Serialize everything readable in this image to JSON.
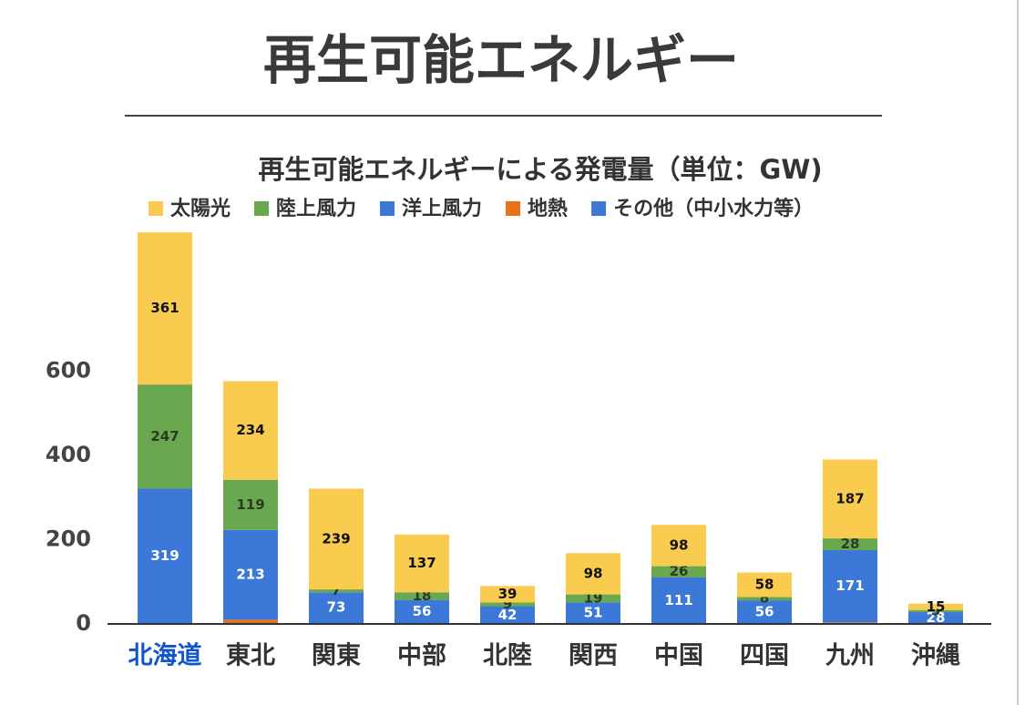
{
  "header": {
    "title": "再生可能エネルギー"
  },
  "chart_data": {
    "type": "bar",
    "stacked": true,
    "title": "再生可能エネルギーによる発電量（単位：GW)",
    "categories": [
      "北海道",
      "東北",
      "関東",
      "中部",
      "北陸",
      "関西",
      "中国",
      "四国",
      "九州",
      "沖縄"
    ],
    "highlight": {
      "index": 0,
      "color": "#1155cc"
    },
    "series": [
      {
        "name": "太陽光",
        "color": "#f9cb4f",
        "label_color": "#111",
        "labels": true,
        "values": [
          361,
          234,
          239,
          137,
          39,
          98,
          98,
          58,
          187,
          15
        ]
      },
      {
        "name": "陸上風力",
        "color": "#6aa84f",
        "label_color": "#2b3b22",
        "labels": true,
        "values": [
          247,
          119,
          7,
          18,
          9,
          19,
          26,
          8,
          28,
          5
        ]
      },
      {
        "name": "洋上風力",
        "color": "#3c78d8",
        "label_color": "#ffffff",
        "labels": true,
        "values": [
          319,
          213,
          73,
          56,
          42,
          51,
          111,
          56,
          171,
          28
        ]
      },
      {
        "name": "地熱",
        "color": "#e8711c",
        "label_color": "#ffffff",
        "labels": false,
        "values": [
          2,
          10,
          2,
          1,
          0,
          0,
          0,
          0,
          4,
          0
        ]
      },
      {
        "name": "その他（中小水力等）",
        "color": "#3c78d8",
        "label_color": "#ffffff",
        "labels": false,
        "values": [
          0,
          0,
          0,
          0,
          0,
          0,
          0,
          0,
          0,
          0
        ]
      }
    ],
    "ylim": [
      0,
      940
    ],
    "yticks": [
      0,
      200,
      400,
      600
    ],
    "grid": false
  }
}
